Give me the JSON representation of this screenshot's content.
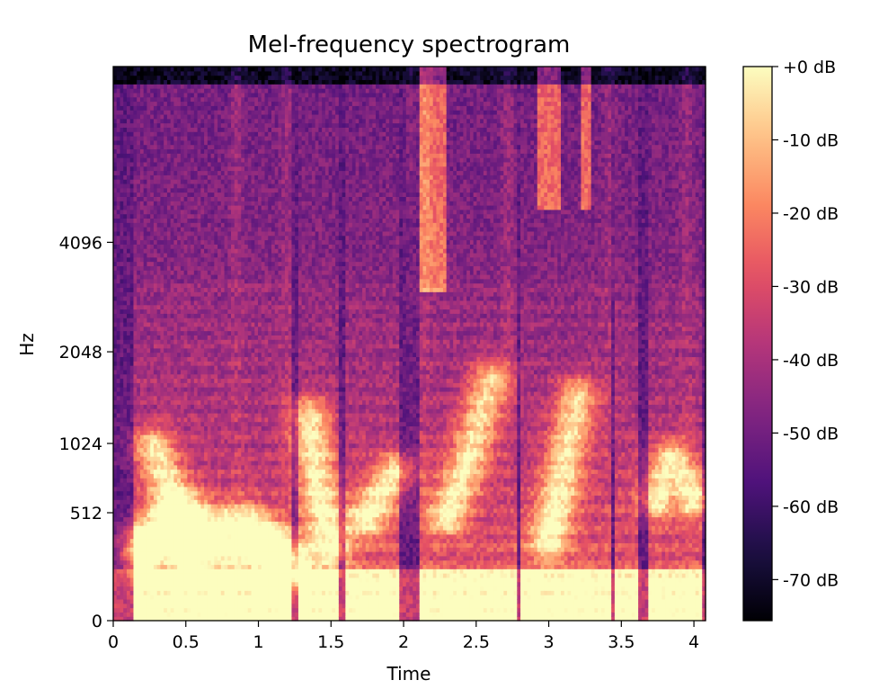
{
  "chart_data": {
    "type": "heatmap",
    "title": "Mel-frequency spectrogram",
    "xlabel": "Time",
    "ylabel": "Hz",
    "x_ticks": [
      "0",
      "0.5",
      "1",
      "1.5",
      "2",
      "2.5",
      "3",
      "3.5",
      "4"
    ],
    "x_tick_values": [
      0,
      0.5,
      1,
      1.5,
      2,
      2.5,
      3,
      3.5,
      4
    ],
    "xlim": [
      0,
      4.08
    ],
    "y_scale": "mel",
    "y_ticks": [
      "0",
      "512",
      "1024",
      "2048",
      "4096"
    ],
    "y_tick_values": [
      0,
      512,
      1024,
      2048,
      4096
    ],
    "ylim": [
      0,
      11025
    ],
    "colormap": "magma",
    "colorbar": {
      "ticks": [
        "+0 dB",
        "-10 dB",
        "-20 dB",
        "-30 dB",
        "-40 dB",
        "-50 dB",
        "-60 dB",
        "-70 dB"
      ],
      "tick_values": [
        0,
        -10,
        -20,
        -30,
        -40,
        -50,
        -60,
        -70
      ],
      "range": [
        -75.6,
        0
      ]
    },
    "colormap_stops": [
      "#000004",
      "#1c1044",
      "#4f127b",
      "#812581",
      "#b5367a",
      "#e55064",
      "#fb8761",
      "#fec287",
      "#fcfdbf"
    ],
    "spectrogram_resolution": {
      "time_frames": 176,
      "mel_bins": 128
    },
    "formant_tracks_hz": [
      {
        "points": [
          [
            0.2,
            350
          ],
          [
            0.35,
            480
          ],
          [
            0.5,
            420
          ],
          [
            0.7,
            440
          ],
          [
            0.9,
            470
          ],
          [
            1.05,
            400
          ],
          [
            1.2,
            280
          ]
        ]
      },
      {
        "points": [
          [
            0.2,
            260
          ],
          [
            0.35,
            330
          ],
          [
            0.5,
            260
          ],
          [
            0.7,
            290
          ],
          [
            0.9,
            300
          ],
          [
            1.05,
            280
          ],
          [
            1.2,
            190
          ]
        ]
      },
      {
        "points": [
          [
            0.28,
            1000
          ],
          [
            0.38,
            700
          ],
          [
            0.5,
            560
          ]
        ]
      },
      {
        "points": [
          [
            1.35,
            1300
          ],
          [
            1.42,
            650
          ],
          [
            1.5,
            300
          ]
        ]
      },
      {
        "points": [
          [
            1.75,
            480
          ],
          [
            1.85,
            650
          ],
          [
            1.95,
            800
          ]
        ]
      },
      {
        "points": [
          [
            2.3,
            500
          ],
          [
            2.45,
            900
          ],
          [
            2.6,
            1700
          ]
        ]
      },
      {
        "points": [
          [
            3.0,
            350
          ],
          [
            3.1,
            800
          ],
          [
            3.2,
            1500
          ]
        ]
      },
      {
        "points": [
          [
            3.75,
            600
          ],
          [
            3.85,
            900
          ],
          [
            4.0,
            600
          ]
        ]
      }
    ],
    "high_energy_bands": [
      {
        "t_start": 2.92,
        "t_end": 3.08,
        "hz_min": 5000,
        "hz_max": 11000
      },
      {
        "t_start": 3.22,
        "t_end": 3.3,
        "hz_min": 5000,
        "hz_max": 11000
      },
      {
        "t_start": 2.1,
        "t_end": 2.3,
        "hz_min": 3000,
        "hz_max": 11000
      }
    ]
  }
}
